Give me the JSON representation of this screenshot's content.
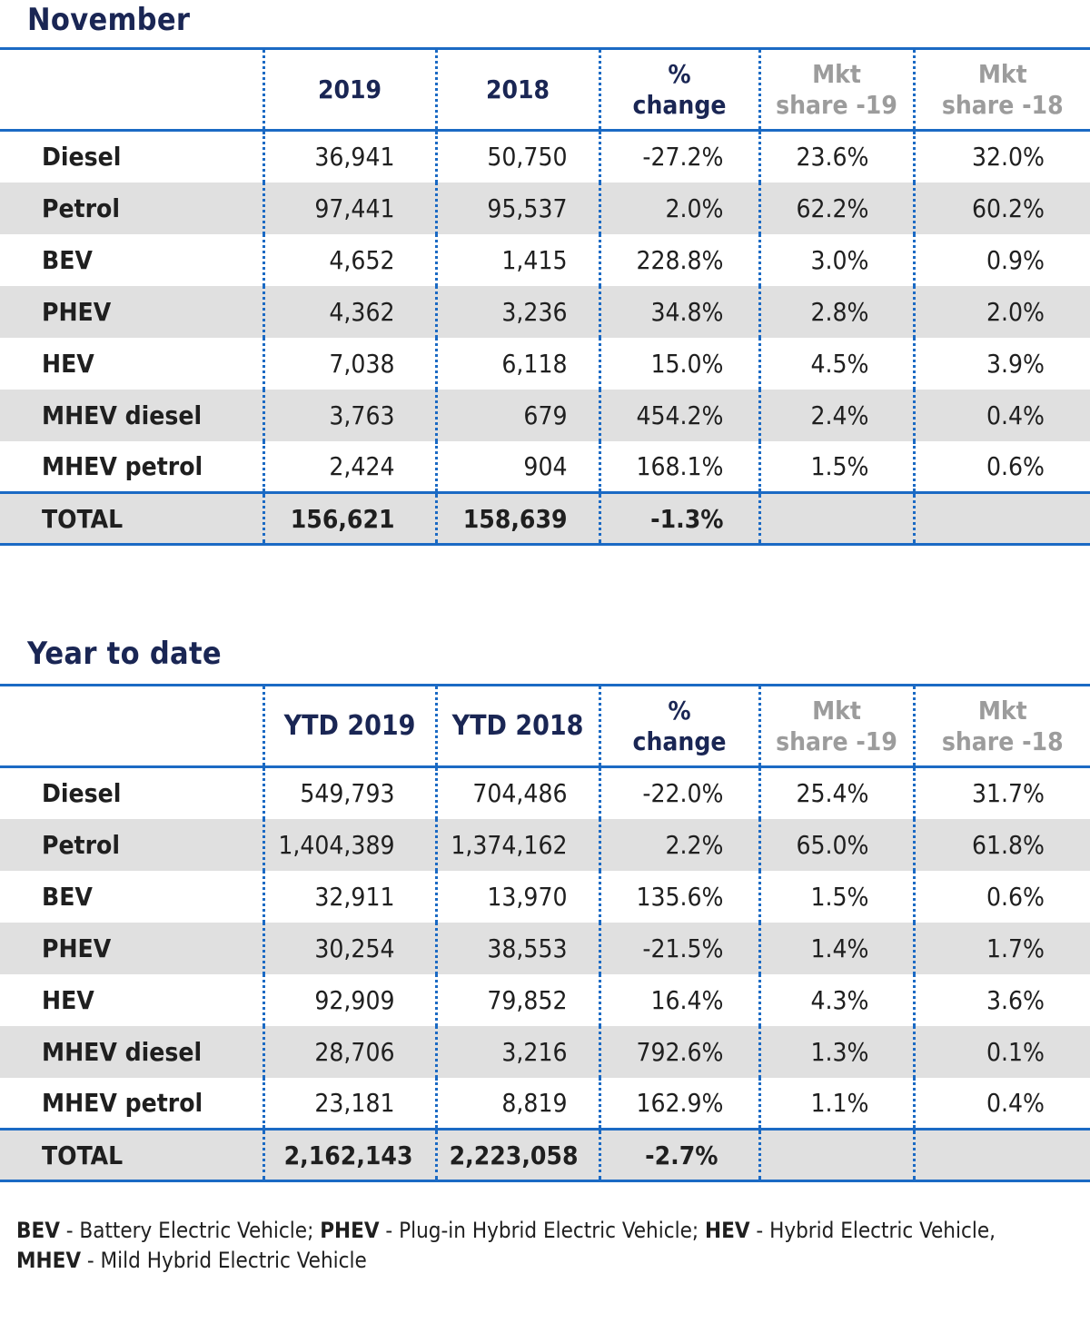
{
  "november": {
    "title": "November",
    "headers": {
      "year_a": "2019",
      "year_b": "2018",
      "change_line1": "%",
      "change_line2": "change",
      "share_a_line1": "Mkt",
      "share_a_line2": "share -19",
      "share_b_line1": "Mkt",
      "share_b_line2": "share -18"
    },
    "rows": [
      {
        "label": "Diesel",
        "a": "36,941",
        "b": "50,750",
        "change": "-27.2%",
        "share_a": "23.6%",
        "share_b": "32.0%"
      },
      {
        "label": "Petrol",
        "a": "97,441",
        "b": "95,537",
        "change": "2.0%",
        "share_a": "62.2%",
        "share_b": "60.2%"
      },
      {
        "label": "BEV",
        "a": "4,652",
        "b": "1,415",
        "change": "228.8%",
        "share_a": "3.0%",
        "share_b": "0.9%"
      },
      {
        "label": "PHEV",
        "a": "4,362",
        "b": "3,236",
        "change": "34.8%",
        "share_a": "2.8%",
        "share_b": "2.0%"
      },
      {
        "label": "HEV",
        "a": "7,038",
        "b": "6,118",
        "change": "15.0%",
        "share_a": "4.5%",
        "share_b": "3.9%"
      },
      {
        "label": "MHEV diesel",
        "a": "3,763",
        "b": "679",
        "change": "454.2%",
        "share_a": "2.4%",
        "share_b": "0.4%"
      },
      {
        "label": "MHEV petrol",
        "a": "2,424",
        "b": "904",
        "change": "168.1%",
        "share_a": "1.5%",
        "share_b": "0.6%"
      }
    ],
    "total": {
      "label": "TOTAL",
      "a": "156,621",
      "b": "158,639",
      "change": "-1.3%"
    }
  },
  "ytd": {
    "title": "Year to date",
    "headers": {
      "year_a": "YTD 2019",
      "year_b": "YTD 2018",
      "change_line1": "%",
      "change_line2": "change",
      "share_a_line1": "Mkt",
      "share_a_line2": "share -19",
      "share_b_line1": "Mkt",
      "share_b_line2": "share -18"
    },
    "rows": [
      {
        "label": "Diesel",
        "a": "549,793",
        "b": "704,486",
        "change": "-22.0%",
        "share_a": "25.4%",
        "share_b": "31.7%"
      },
      {
        "label": "Petrol",
        "a": "1,404,389",
        "b": "1,374,162",
        "change": "2.2%",
        "share_a": "65.0%",
        "share_b": "61.8%"
      },
      {
        "label": "BEV",
        "a": "32,911",
        "b": "13,970",
        "change": "135.6%",
        "share_a": "1.5%",
        "share_b": "0.6%"
      },
      {
        "label": "PHEV",
        "a": "30,254",
        "b": "38,553",
        "change": "-21.5%",
        "share_a": "1.4%",
        "share_b": "1.7%"
      },
      {
        "label": "HEV",
        "a": "92,909",
        "b": "79,852",
        "change": "16.4%",
        "share_a": "4.3%",
        "share_b": "3.6%"
      },
      {
        "label": "MHEV diesel",
        "a": "28,706",
        "b": "3,216",
        "change": "792.6%",
        "share_a": "1.3%",
        "share_b": "0.1%"
      },
      {
        "label": "MHEV petrol",
        "a": "23,181",
        "b": "8,819",
        "change": "162.9%",
        "share_a": "1.1%",
        "share_b": "0.4%"
      }
    ],
    "total": {
      "label": "TOTAL",
      "a": "2,162,143",
      "b": "2,223,058",
      "change": "-2.7%"
    }
  },
  "footnote": {
    "bev_abbr": "BEV",
    "bev_text": " - Battery Electric Vehicle; ",
    "phev_abbr": "PHEV",
    "phev_text": " - Plug-in Hybrid Electric Vehicle; ",
    "hev_abbr": "HEV",
    "hev_text": " - Hybrid Electric Vehicle,",
    "mhev_abbr": "MHEV",
    "mhev_text": " - Mild Hybrid Electric Vehicle"
  },
  "colors": {
    "title_navy": "#1a2654",
    "rule_blue": "#1b6ac4",
    "row_shade": "#e0e0e0",
    "muted_header": "#9c9c9c"
  }
}
